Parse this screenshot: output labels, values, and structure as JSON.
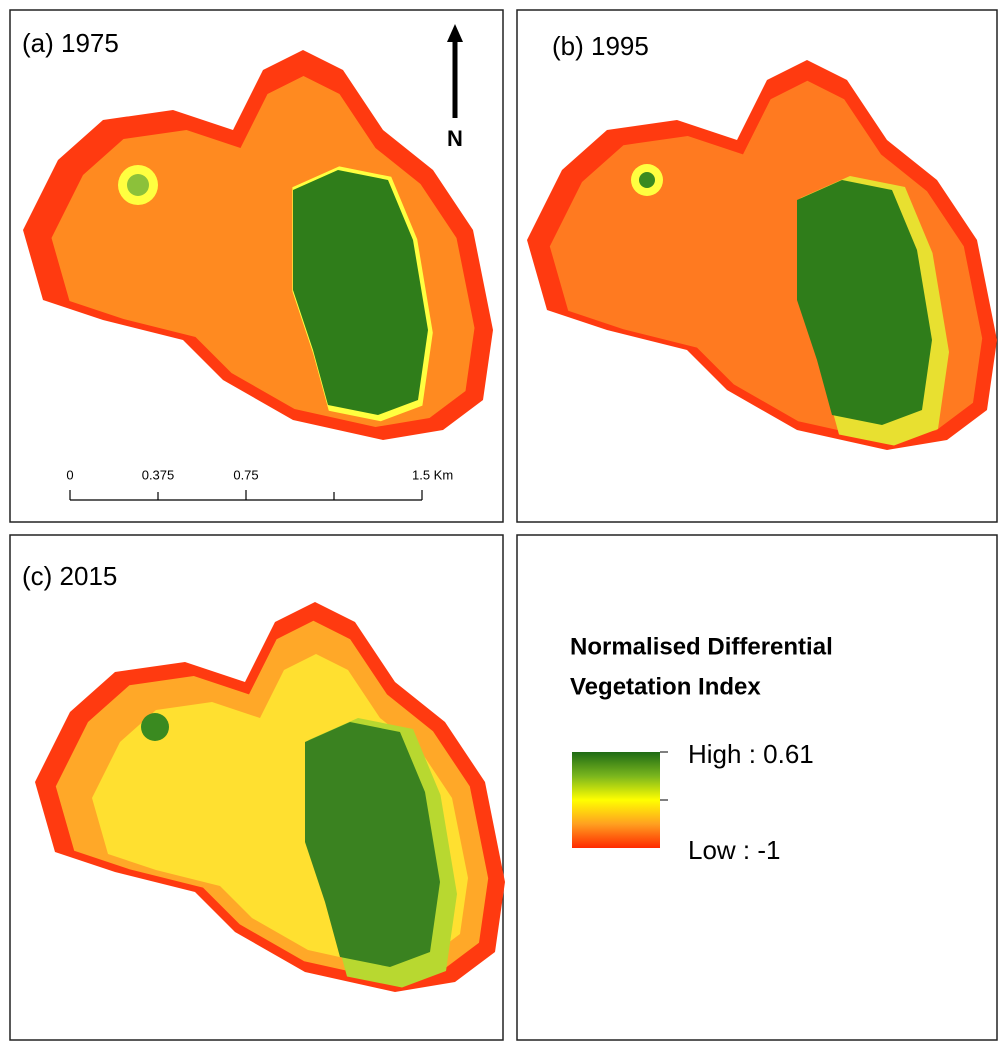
{
  "panels": [
    {
      "title": "(a) 1975"
    },
    {
      "title": "(b) 1995"
    },
    {
      "title": "(c) 2015"
    }
  ],
  "north_arrow": {
    "label": "N"
  },
  "scale_bar": {
    "labels": [
      "0",
      "0.375",
      "0.75",
      "1.5 Km"
    ]
  },
  "legend": {
    "title_lines": [
      "Normalised Differential",
      "Vegetation Index"
    ],
    "high": "High : 0.61",
    "low": "Low : -1"
  }
}
